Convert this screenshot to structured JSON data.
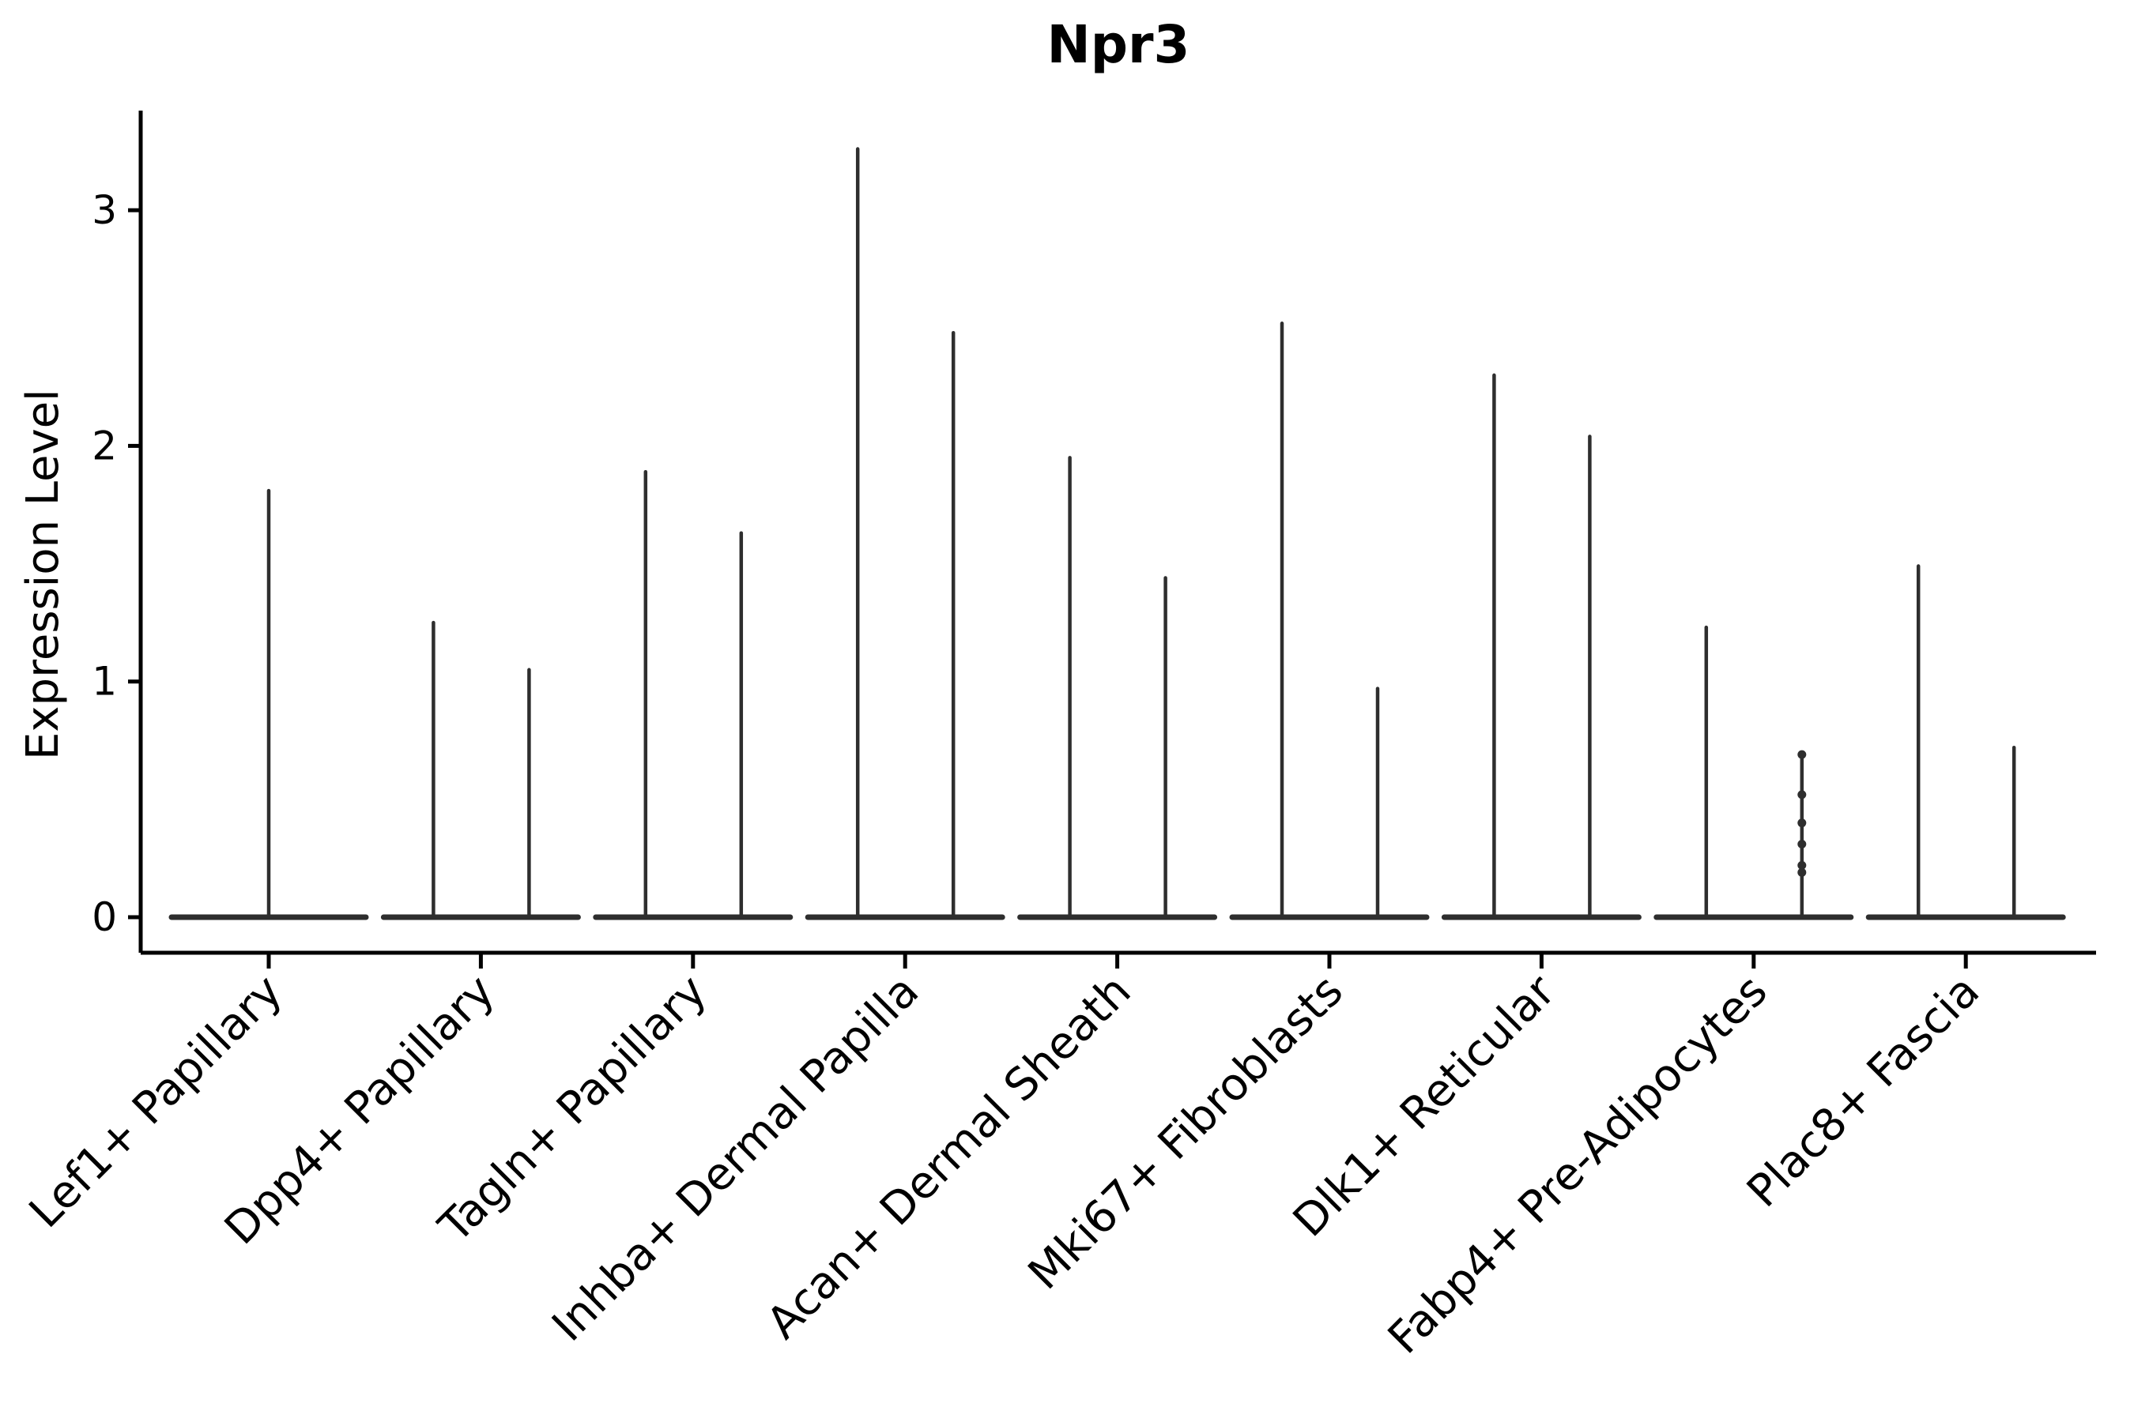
{
  "figure": {
    "title": "Npr3",
    "y_axis": {
      "label": "Expression Level",
      "tick_labels": [
        "0",
        "1",
        "2",
        "3"
      ]
    },
    "x_axis": {
      "categories": [
        "Lef1+ Papillary",
        "Dpp4+ Papillary",
        "Tagln+ Papillary",
        "Inhba+ Dermal Papilla",
        "Acan+ Dermal Sheath",
        "Mki67+ Fibroblasts",
        "Dlk1+ Reticular",
        "Fabp4+ Pre-Adipocytes",
        "Plac8+ Fascia"
      ]
    }
  },
  "chart_data": {
    "type": "violin",
    "title": "Npr3",
    "xlabel": "",
    "ylabel": "Expression Level",
    "yticks": [
      0,
      1,
      2,
      3
    ],
    "ylim": [
      -0.15,
      3.45
    ],
    "grid": false,
    "legend": "none",
    "description": "Violin plot of Npr3 expression; distributions are concentrated at 0 (flat baseline) with thin spikes reaching each violin's maximum expression value.",
    "categories": [
      "Lef1+ Papillary",
      "Dpp4+ Papillary",
      "Tagln+ Papillary",
      "Inhba+ Dermal Papilla",
      "Acan+ Dermal Sheath",
      "Mki67+ Fibroblasts",
      "Dlk1+ Reticular",
      "Fabp4+ Pre-Adipocytes",
      "Plac8+ Fascia"
    ],
    "violins": [
      {
        "category": "Lef1+ Papillary",
        "spikes": [
          {
            "pos": "center",
            "max": 1.81
          }
        ]
      },
      {
        "category": "Dpp4+ Papillary",
        "spikes": [
          {
            "pos": "left",
            "max": 1.25
          },
          {
            "pos": "right",
            "max": 1.05
          }
        ]
      },
      {
        "category": "Tagln+ Papillary",
        "spikes": [
          {
            "pos": "left",
            "max": 1.89
          },
          {
            "pos": "right",
            "max": 1.63
          }
        ]
      },
      {
        "category": "Inhba+ Dermal Papilla",
        "spikes": [
          {
            "pos": "left",
            "max": 3.26
          },
          {
            "pos": "right",
            "max": 2.48
          }
        ]
      },
      {
        "category": "Acan+ Dermal Sheath",
        "spikes": [
          {
            "pos": "left",
            "max": 1.95
          },
          {
            "pos": "right",
            "max": 1.44
          }
        ]
      },
      {
        "category": "Mki67+ Fibroblasts",
        "spikes": [
          {
            "pos": "left",
            "max": 2.52
          },
          {
            "pos": "right",
            "max": 0.97
          }
        ]
      },
      {
        "category": "Dlk1+ Reticular",
        "spikes": [
          {
            "pos": "left",
            "max": 2.3
          },
          {
            "pos": "right",
            "max": 2.04
          }
        ]
      },
      {
        "category": "Fabp4+ Pre-Adipocytes",
        "spikes": [
          {
            "pos": "left",
            "max": 1.23
          },
          {
            "pos": "right",
            "max": 0.69,
            "points": [
              0.69,
              0.52,
              0.4,
              0.31,
              0.22,
              0.19
            ]
          }
        ]
      },
      {
        "category": "Plac8+ Fascia",
        "spikes": [
          {
            "pos": "left",
            "max": 1.49
          },
          {
            "pos": "right",
            "max": 0.72
          }
        ]
      }
    ],
    "baseline_value": 0,
    "colors": {
      "violin_stroke": "#2e2e2e",
      "axis": "#000000",
      "background": "#ffffff"
    }
  }
}
